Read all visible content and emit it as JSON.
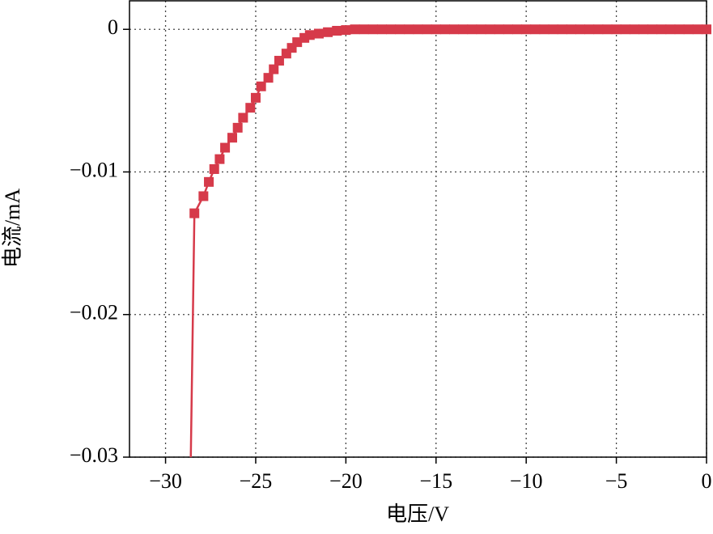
{
  "chart_data": {
    "type": "line",
    "x_label": "电压/V",
    "y_label": "电流/mA",
    "xlim": [
      -32,
      0
    ],
    "ylim": [
      -0.03,
      0.002
    ],
    "xticks": [
      {
        "value": -30,
        "label": "−30"
      },
      {
        "value": -25,
        "label": "−25"
      },
      {
        "value": -20,
        "label": "−20"
      },
      {
        "value": -15,
        "label": "−15"
      },
      {
        "value": -10,
        "label": "−10"
      },
      {
        "value": -5,
        "label": "−5"
      },
      0
    ],
    "yticks": [
      {
        "value": -0.03,
        "label": "−0.03"
      },
      {
        "value": -0.02,
        "label": "−0.02"
      },
      {
        "value": -0.01,
        "label": "−0.01"
      },
      0
    ],
    "grid": true,
    "series": [
      {
        "color": "#d63a4a",
        "markers": false,
        "x": [
          -28.6,
          -28.4
        ],
        "values": [
          -0.03,
          -0.0129
        ]
      },
      {
        "color": "#d63a4a",
        "markers": true,
        "x": [
          -28.4,
          -27.9,
          -27.6,
          -27.3,
          -27.0,
          -26.7,
          -26.3,
          -26.0,
          -25.7,
          -25.3,
          -25.0,
          -24.7,
          -24.3,
          -24.0,
          -23.7,
          -23.3,
          -23.0,
          -22.7,
          -22.3,
          -22.0,
          -21.5,
          -21.0,
          -20.5,
          -20.0,
          -19.5,
          -19.0,
          -18.5,
          -18.0,
          -17.5,
          -17.0,
          -16.5,
          -16.0,
          -15.5,
          -15.0,
          -14.5,
          -14.0,
          -13.5,
          -13.0,
          -12.5,
          -12.0,
          -11.5,
          -11.0,
          -10.5,
          -10.0,
          -9.5,
          -9.0,
          -8.5,
          -8.0,
          -7.5,
          -7.0,
          -6.5,
          -6.0,
          -5.5,
          -5.0,
          -4.5,
          -4.0,
          -3.5,
          -3.0,
          -2.5,
          -2.0,
          -1.5,
          -1.0,
          -0.5,
          0
        ],
        "values": [
          -0.0129,
          -0.0117,
          -0.0107,
          -0.0098,
          -0.0091,
          -0.0083,
          -0.0076,
          -0.0069,
          -0.0062,
          -0.0055,
          -0.0048,
          -0.004,
          -0.0034,
          -0.0028,
          -0.0022,
          -0.0017,
          -0.0013,
          -0.0009,
          -0.0006,
          -0.0004,
          -0.0003,
          -0.0002,
          -0.0001,
          -5e-05,
          0,
          0,
          0,
          0,
          0,
          0,
          0,
          0,
          0,
          0,
          0,
          0,
          0,
          0,
          0,
          0,
          0,
          0,
          0,
          0,
          0,
          0,
          0,
          0,
          0,
          0,
          0,
          0,
          0,
          0,
          0,
          0,
          0,
          0,
          0,
          0,
          0,
          0,
          0,
          0
        ]
      }
    ]
  }
}
